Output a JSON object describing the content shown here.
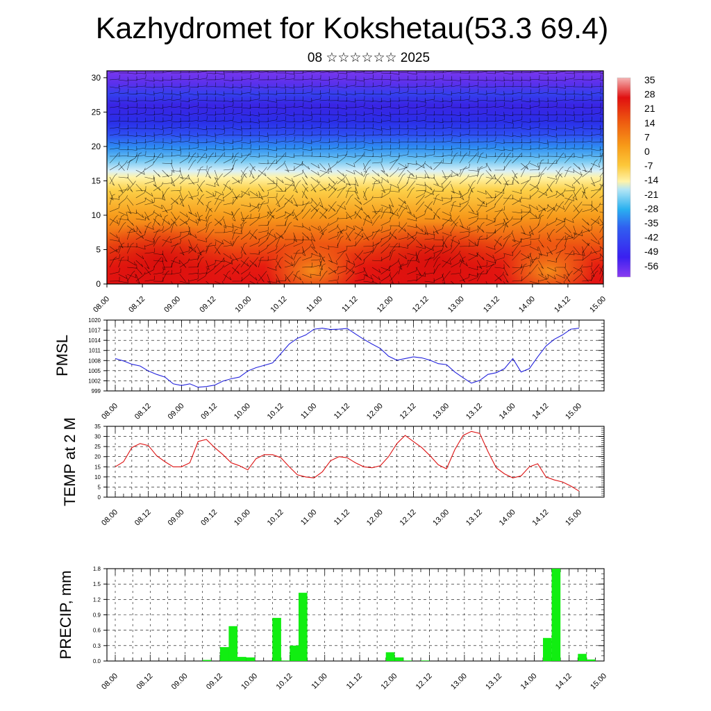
{
  "header": {
    "title": "Kazhydromet for Kokshetau(53.3 69.4)",
    "subtitle": "08 ☆☆☆☆☆☆ 2025"
  },
  "colors": {
    "pmsl_line": "#2222dd",
    "temp_line": "#dd1111",
    "precip_bar": "#11ee11",
    "colorbar": [
      "#f4b4b4",
      "#e82020",
      "#e01010",
      "#ee5a10",
      "#f79a18",
      "#fcc83a",
      "#fff3a8",
      "#b4e6f5",
      "#2ab0f0",
      "#3060f0",
      "#3a20f0",
      "#8a3cf0"
    ]
  },
  "chart_data": [
    {
      "type": "heatmap",
      "title": "",
      "xlabel": "",
      "ylabel": "",
      "x_tick_labels": [
        "08.00",
        "08.12",
        "09.00",
        "09.12",
        "10.00",
        "10.12",
        "11.00",
        "11.12",
        "12.00",
        "12.12",
        "13.00",
        "13.12",
        "14.00",
        "14.12",
        "15.00"
      ],
      "y_tick_labels": [
        "0",
        "5",
        "10",
        "15",
        "20",
        "25",
        "30"
      ],
      "ylim": [
        0,
        31
      ],
      "colorbar_labels": [
        "35",
        "28",
        "21",
        "14",
        "7",
        "0",
        "-7",
        "-14",
        "-21",
        "-28",
        "-35",
        "-42",
        "-49",
        "-56"
      ],
      "description_overlay": "wind barbs"
    },
    {
      "type": "line",
      "ylabel": "PMSL",
      "ylim": [
        999,
        1020
      ],
      "y_tick_labels": [
        "999",
        "1002",
        "1005",
        "1008",
        "1011",
        "1014",
        "1017",
        "1020"
      ],
      "x_tick_labels": [
        "08.00",
        "08.12",
        "09.00",
        "09.12",
        "10.00",
        "10.12",
        "11.00",
        "11.12",
        "12.00",
        "12.12",
        "13.00",
        "13.12",
        "14.00",
        "14.12",
        "15.00"
      ],
      "x": [
        0,
        3,
        6,
        9,
        12,
        15,
        18,
        21,
        24,
        27,
        30,
        33,
        36,
        39,
        42,
        45,
        48,
        51,
        54,
        57,
        60,
        63,
        66,
        69,
        72,
        75,
        78,
        81,
        84,
        87,
        90,
        93,
        96,
        99,
        102,
        105,
        108,
        111,
        114,
        117,
        120,
        123,
        126,
        129,
        132,
        135,
        138,
        141,
        144,
        147,
        150,
        153,
        156,
        159,
        162,
        165,
        168
      ],
      "series": [
        {
          "values": [
            1008.6,
            1007.9,
            1006.9,
            1006.4,
            1004.9,
            1003.9,
            1003.1,
            1001.1,
            1000.6,
            1001.1,
            1000.1,
            1000.3,
            1000.7,
            1001.9,
            1002.6,
            1003.1,
            1004.9,
            1005.9,
            1006.6,
            1007.3,
            1010.1,
            1012.9,
            1014.6,
            1015.6,
            1017.3,
            1017.6,
            1017.2,
            1017.3,
            1017.5,
            1015.9,
            1014.3,
            1012.9,
            1011.6,
            1009.3,
            1008.1,
            1008.6,
            1009.1,
            1008.8,
            1008.1,
            1007.1,
            1006.8,
            1004.6,
            1002.9,
            1001.3,
            1002.1,
            1003.9,
            1004.4,
            1005.6,
            1008.6,
            1004.6,
            1005.6,
            1009.1,
            1012.3,
            1014.3,
            1015.6,
            1017.3,
            1017.6
          ]
        }
      ]
    },
    {
      "type": "line",
      "ylabel": "TEMP at 2 M",
      "ylim": [
        0,
        35
      ],
      "y_tick_labels": [
        "0",
        "5",
        "10",
        "15",
        "20",
        "25",
        "30",
        "35"
      ],
      "x_tick_labels": [
        "08.00",
        "08.12",
        "09.00",
        "09.12",
        "10.00",
        "10.12",
        "11.00",
        "11.12",
        "12.00",
        "12.12",
        "13.00",
        "13.12",
        "14.00",
        "14.12",
        "15.00"
      ],
      "x": [
        0,
        3,
        6,
        9,
        12,
        15,
        18,
        21,
        24,
        27,
        30,
        33,
        36,
        39,
        42,
        45,
        48,
        51,
        54,
        57,
        60,
        63,
        66,
        69,
        72,
        75,
        78,
        81,
        84,
        87,
        90,
        93,
        96,
        99,
        102,
        105,
        108,
        111,
        114,
        117,
        120,
        123,
        126,
        129,
        132,
        135,
        138,
        141,
        144,
        147,
        150,
        153,
        156,
        159,
        162,
        165,
        168
      ],
      "series": [
        {
          "values": [
            15,
            17.5,
            24.5,
            26.5,
            25.5,
            20.5,
            17.5,
            15,
            15,
            17,
            27.5,
            28.5,
            24.5,
            21,
            17,
            15.5,
            13.5,
            19,
            21,
            21,
            19.5,
            15,
            11,
            10,
            9.5,
            12.5,
            18,
            20,
            19.5,
            17,
            15,
            14.5,
            15.5,
            20,
            26.5,
            30.5,
            27.5,
            24.5,
            20.5,
            16,
            14,
            23.5,
            30.5,
            32.5,
            31.5,
            22.5,
            14.5,
            11.5,
            9.5,
            10.5,
            15,
            16.5,
            10,
            8.5,
            7.5,
            5.5,
            3
          ]
        }
      ]
    },
    {
      "type": "bar",
      "ylabel": "PRECIP, mm",
      "ylim": [
        0,
        1.8
      ],
      "y_tick_labels": [
        "0.0",
        "0.3",
        "0.6",
        "0.9",
        "1.2",
        "1.5",
        "1.8"
      ],
      "x_tick_labels": [
        "08.00",
        "08.12",
        "09.00",
        "09.12",
        "10.00",
        "10.12",
        "11.00",
        "11.12",
        "12.00",
        "12.12",
        "13.00",
        "13.12",
        "14.00",
        "14.12",
        "15.00"
      ],
      "bars": [
        {
          "x": 30,
          "value": 0.02
        },
        {
          "x": 36,
          "value": 0.27
        },
        {
          "x": 39,
          "value": 0.68
        },
        {
          "x": 42,
          "value": 0.08
        },
        {
          "x": 45,
          "value": 0.07
        },
        {
          "x": 54,
          "value": 0.84
        },
        {
          "x": 57,
          "value": 0.01
        },
        {
          "x": 60,
          "value": 0.3
        },
        {
          "x": 63,
          "value": 1.33
        },
        {
          "x": 93,
          "value": 0.17
        },
        {
          "x": 96,
          "value": 0.07
        },
        {
          "x": 99,
          "value": 0.01
        },
        {
          "x": 105,
          "value": 0.01
        },
        {
          "x": 147,
          "value": 0.45
        },
        {
          "x": 150,
          "value": 1.8
        },
        {
          "x": 159,
          "value": 0.14
        },
        {
          "x": 162,
          "value": 0.03
        }
      ]
    }
  ]
}
